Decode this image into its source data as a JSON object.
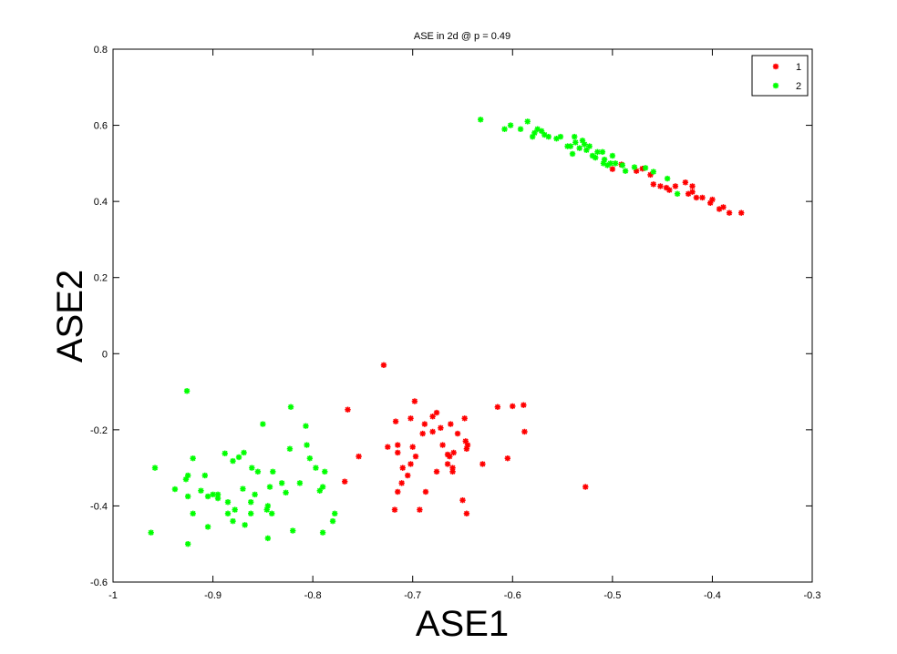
{
  "chart_data": {
    "type": "scatter",
    "title": "ASE in 2d @ p = 0.49",
    "xlabel": "ASE1",
    "ylabel": "ASE2",
    "xlim": [
      -1,
      -0.3
    ],
    "ylim": [
      -0.6,
      0.8
    ],
    "xticks": [
      -1,
      -0.9,
      -0.8,
      -0.7,
      -0.6,
      -0.5,
      -0.4,
      -0.3
    ],
    "xtick_labels": [
      "-1",
      "-0.9",
      "-0.8",
      "-0.7",
      "-0.6",
      "-0.5",
      "-0.4",
      "-0.3"
    ],
    "yticks": [
      -0.6,
      -0.4,
      -0.2,
      0,
      0.2,
      0.4,
      0.6,
      0.8
    ],
    "ytick_labels": [
      "-0.6",
      "-0.4",
      "-0.2",
      "0",
      "0.2",
      "0.4",
      "0.6",
      "0.8"
    ],
    "grid": false,
    "legend_position": "top-right",
    "series": [
      {
        "name": "1",
        "color": "#ff0000",
        "marker": "star",
        "points": [
          [
            -0.729,
            -0.03
          ],
          [
            -0.698,
            -0.125
          ],
          [
            -0.676,
            -0.155
          ],
          [
            -0.68,
            -0.165
          ],
          [
            -0.765,
            -0.147
          ],
          [
            -0.6,
            -0.138
          ],
          [
            -0.589,
            -0.135
          ],
          [
            -0.615,
            -0.14
          ],
          [
            -0.588,
            -0.205
          ],
          [
            -0.717,
            -0.178
          ],
          [
            -0.702,
            -0.17
          ],
          [
            -0.688,
            -0.185
          ],
          [
            -0.662,
            -0.185
          ],
          [
            -0.672,
            -0.195
          ],
          [
            -0.648,
            -0.17
          ],
          [
            -0.68,
            -0.205
          ],
          [
            -0.655,
            -0.21
          ],
          [
            -0.69,
            -0.21
          ],
          [
            -0.7,
            -0.245
          ],
          [
            -0.725,
            -0.245
          ],
          [
            -0.715,
            -0.24
          ],
          [
            -0.697,
            -0.27
          ],
          [
            -0.663,
            -0.27
          ],
          [
            -0.659,
            -0.26
          ],
          [
            -0.665,
            -0.265
          ],
          [
            -0.665,
            -0.29
          ],
          [
            -0.647,
            -0.23
          ],
          [
            -0.646,
            -0.25
          ],
          [
            -0.67,
            -0.24
          ],
          [
            -0.715,
            -0.26
          ],
          [
            -0.754,
            -0.27
          ],
          [
            -0.605,
            -0.275
          ],
          [
            -0.63,
            -0.29
          ],
          [
            -0.66,
            -0.3
          ],
          [
            -0.676,
            -0.31
          ],
          [
            -0.66,
            -0.31
          ],
          [
            -0.71,
            -0.3
          ],
          [
            -0.705,
            -0.32
          ],
          [
            -0.645,
            -0.24
          ],
          [
            -0.768,
            -0.336
          ],
          [
            -0.711,
            -0.34
          ],
          [
            -0.715,
            -0.363
          ],
          [
            -0.687,
            -0.363
          ],
          [
            -0.65,
            -0.385
          ],
          [
            -0.718,
            -0.41
          ],
          [
            -0.693,
            -0.41
          ],
          [
            -0.646,
            -0.42
          ],
          [
            -0.527,
            -0.35
          ],
          [
            -0.702,
            -0.29
          ],
          [
            -0.491,
            0.497
          ],
          [
            -0.47,
            0.486
          ],
          [
            -0.476,
            0.48
          ],
          [
            -0.462,
            0.47
          ],
          [
            -0.452,
            0.44
          ],
          [
            -0.443,
            0.43
          ],
          [
            -0.437,
            0.44
          ],
          [
            -0.446,
            0.436
          ],
          [
            -0.459,
            0.445
          ],
          [
            -0.427,
            0.45
          ],
          [
            -0.42,
            0.44
          ],
          [
            -0.42,
            0.425
          ],
          [
            -0.424,
            0.42
          ],
          [
            -0.416,
            0.41
          ],
          [
            -0.41,
            0.41
          ],
          [
            -0.402,
            0.396
          ],
          [
            -0.4,
            0.405
          ],
          [
            -0.393,
            0.38
          ],
          [
            -0.389,
            0.385
          ],
          [
            -0.383,
            0.37
          ],
          [
            -0.371,
            0.37
          ],
          [
            -0.5,
            0.485
          ]
        ]
      },
      {
        "name": "2",
        "color": "#00ff00",
        "marker": "star",
        "points": [
          [
            -0.926,
            -0.098
          ],
          [
            -0.822,
            -0.14
          ],
          [
            -0.85,
            -0.185
          ],
          [
            -0.807,
            -0.19
          ],
          [
            -0.806,
            -0.24
          ],
          [
            -0.823,
            -0.25
          ],
          [
            -0.869,
            -0.26
          ],
          [
            -0.888,
            -0.262
          ],
          [
            -0.874,
            -0.272
          ],
          [
            -0.88,
            -0.282
          ],
          [
            -0.92,
            -0.275
          ],
          [
            -0.958,
            -0.3
          ],
          [
            -0.925,
            -0.32
          ],
          [
            -0.927,
            -0.33
          ],
          [
            -0.908,
            -0.32
          ],
          [
            -0.861,
            -0.3
          ],
          [
            -0.855,
            -0.31
          ],
          [
            -0.803,
            -0.275
          ],
          [
            -0.797,
            -0.3
          ],
          [
            -0.84,
            -0.31
          ],
          [
            -0.788,
            -0.31
          ],
          [
            -0.831,
            -0.34
          ],
          [
            -0.813,
            -0.34
          ],
          [
            -0.843,
            -0.35
          ],
          [
            -0.827,
            -0.365
          ],
          [
            -0.79,
            -0.35
          ],
          [
            -0.793,
            -0.36
          ],
          [
            -0.938,
            -0.356
          ],
          [
            -0.925,
            -0.375
          ],
          [
            -0.912,
            -0.36
          ],
          [
            -0.905,
            -0.375
          ],
          [
            -0.9,
            -0.37
          ],
          [
            -0.895,
            -0.37
          ],
          [
            -0.895,
            -0.38
          ],
          [
            -0.858,
            -0.37
          ],
          [
            -0.878,
            -0.41
          ],
          [
            -0.862,
            -0.39
          ],
          [
            -0.885,
            -0.39
          ],
          [
            -0.885,
            -0.42
          ],
          [
            -0.845,
            -0.4
          ],
          [
            -0.846,
            -0.41
          ],
          [
            -0.862,
            -0.42
          ],
          [
            -0.841,
            -0.42
          ],
          [
            -0.905,
            -0.455
          ],
          [
            -0.88,
            -0.44
          ],
          [
            -0.868,
            -0.45
          ],
          [
            -0.778,
            -0.42
          ],
          [
            -0.78,
            -0.44
          ],
          [
            -0.79,
            -0.47
          ],
          [
            -0.82,
            -0.465
          ],
          [
            -0.845,
            -0.485
          ],
          [
            -0.962,
            -0.47
          ],
          [
            -0.92,
            -0.42
          ],
          [
            -0.925,
            -0.5
          ],
          [
            -0.87,
            -0.355
          ],
          [
            -0.632,
            0.615
          ],
          [
            -0.585,
            0.61
          ],
          [
            -0.602,
            0.6
          ],
          [
            -0.608,
            0.59
          ],
          [
            -0.592,
            0.59
          ],
          [
            -0.575,
            0.59
          ],
          [
            -0.578,
            0.58
          ],
          [
            -0.571,
            0.585
          ],
          [
            -0.568,
            0.575
          ],
          [
            -0.58,
            0.57
          ],
          [
            -0.564,
            0.57
          ],
          [
            -0.556,
            0.565
          ],
          [
            -0.552,
            0.57
          ],
          [
            -0.538,
            0.57
          ],
          [
            -0.537,
            0.555
          ],
          [
            -0.542,
            0.545
          ],
          [
            -0.528,
            0.55
          ],
          [
            -0.533,
            0.54
          ],
          [
            -0.526,
            0.535
          ],
          [
            -0.515,
            0.53
          ],
          [
            -0.52,
            0.52
          ],
          [
            -0.51,
            0.53
          ],
          [
            -0.5,
            0.52
          ],
          [
            -0.508,
            0.51
          ],
          [
            -0.502,
            0.5
          ],
          [
            -0.505,
            0.495
          ],
          [
            -0.497,
            0.5
          ],
          [
            -0.49,
            0.495
          ],
          [
            -0.478,
            0.49
          ],
          [
            -0.467,
            0.488
          ],
          [
            -0.487,
            0.48
          ],
          [
            -0.459,
            0.478
          ],
          [
            -0.445,
            0.46
          ],
          [
            -0.435,
            0.42
          ],
          [
            -0.523,
            0.545
          ],
          [
            -0.545,
            0.545
          ],
          [
            -0.53,
            0.56
          ],
          [
            -0.517,
            0.515
          ],
          [
            -0.54,
            0.525
          ],
          [
            -0.509,
            0.5
          ]
        ]
      }
    ]
  }
}
